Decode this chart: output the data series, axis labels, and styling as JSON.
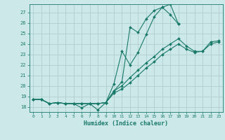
{
  "xlabel": "Humidex (Indice chaleur)",
  "bg_color": "#cce8e8",
  "line_color": "#1a7a6a",
  "grid_color": "#afd0d0",
  "xlim": [
    -0.5,
    23.5
  ],
  "ylim": [
    17.5,
    27.8
  ],
  "yticks": [
    18,
    19,
    20,
    21,
    22,
    23,
    24,
    25,
    26,
    27
  ],
  "xticks": [
    0,
    1,
    2,
    3,
    4,
    5,
    6,
    7,
    8,
    9,
    10,
    11,
    12,
    13,
    14,
    15,
    16,
    17,
    18,
    19,
    20,
    21,
    22,
    23
  ],
  "lines": [
    {
      "x": [
        0,
        1,
        2,
        3,
        4,
        5,
        6,
        7,
        8,
        9,
        10,
        11,
        12,
        13,
        14,
        15,
        16,
        17,
        18
      ],
      "y": [
        18.7,
        18.7,
        18.3,
        18.4,
        18.3,
        18.3,
        17.9,
        18.3,
        17.7,
        18.4,
        19.5,
        20.4,
        25.6,
        25.1,
        26.4,
        27.2,
        27.5,
        27.8,
        25.9
      ]
    },
    {
      "x": [
        0,
        1,
        2,
        3,
        4,
        5,
        6,
        7,
        8,
        9,
        10,
        11,
        12,
        13,
        14,
        15,
        16,
        17,
        18
      ],
      "y": [
        18.7,
        18.7,
        18.3,
        18.4,
        18.3,
        18.3,
        18.3,
        18.3,
        18.3,
        18.4,
        20.2,
        23.3,
        22.0,
        23.2,
        24.9,
        26.6,
        27.5,
        26.8,
        25.9
      ]
    },
    {
      "x": [
        0,
        1,
        2,
        3,
        4,
        5,
        6,
        7,
        8,
        9,
        10,
        11,
        12,
        13,
        14,
        15,
        16,
        17,
        18,
        19,
        20,
        21,
        22,
        23
      ],
      "y": [
        18.7,
        18.7,
        18.3,
        18.4,
        18.3,
        18.3,
        18.3,
        18.3,
        18.3,
        18.4,
        19.5,
        20.0,
        20.8,
        21.5,
        22.2,
        22.8,
        23.5,
        24.0,
        24.5,
        23.8,
        23.3,
        23.3,
        24.2,
        24.3
      ]
    },
    {
      "x": [
        0,
        1,
        2,
        3,
        4,
        5,
        6,
        7,
        8,
        9,
        10,
        11,
        12,
        13,
        14,
        15,
        16,
        17,
        18,
        19,
        20,
        21,
        22,
        23
      ],
      "y": [
        18.7,
        18.7,
        18.3,
        18.4,
        18.3,
        18.3,
        18.3,
        18.3,
        18.3,
        18.4,
        19.3,
        19.7,
        20.3,
        21.0,
        21.7,
        22.3,
        23.0,
        23.5,
        24.0,
        23.5,
        23.2,
        23.3,
        24.0,
        24.2
      ]
    }
  ]
}
